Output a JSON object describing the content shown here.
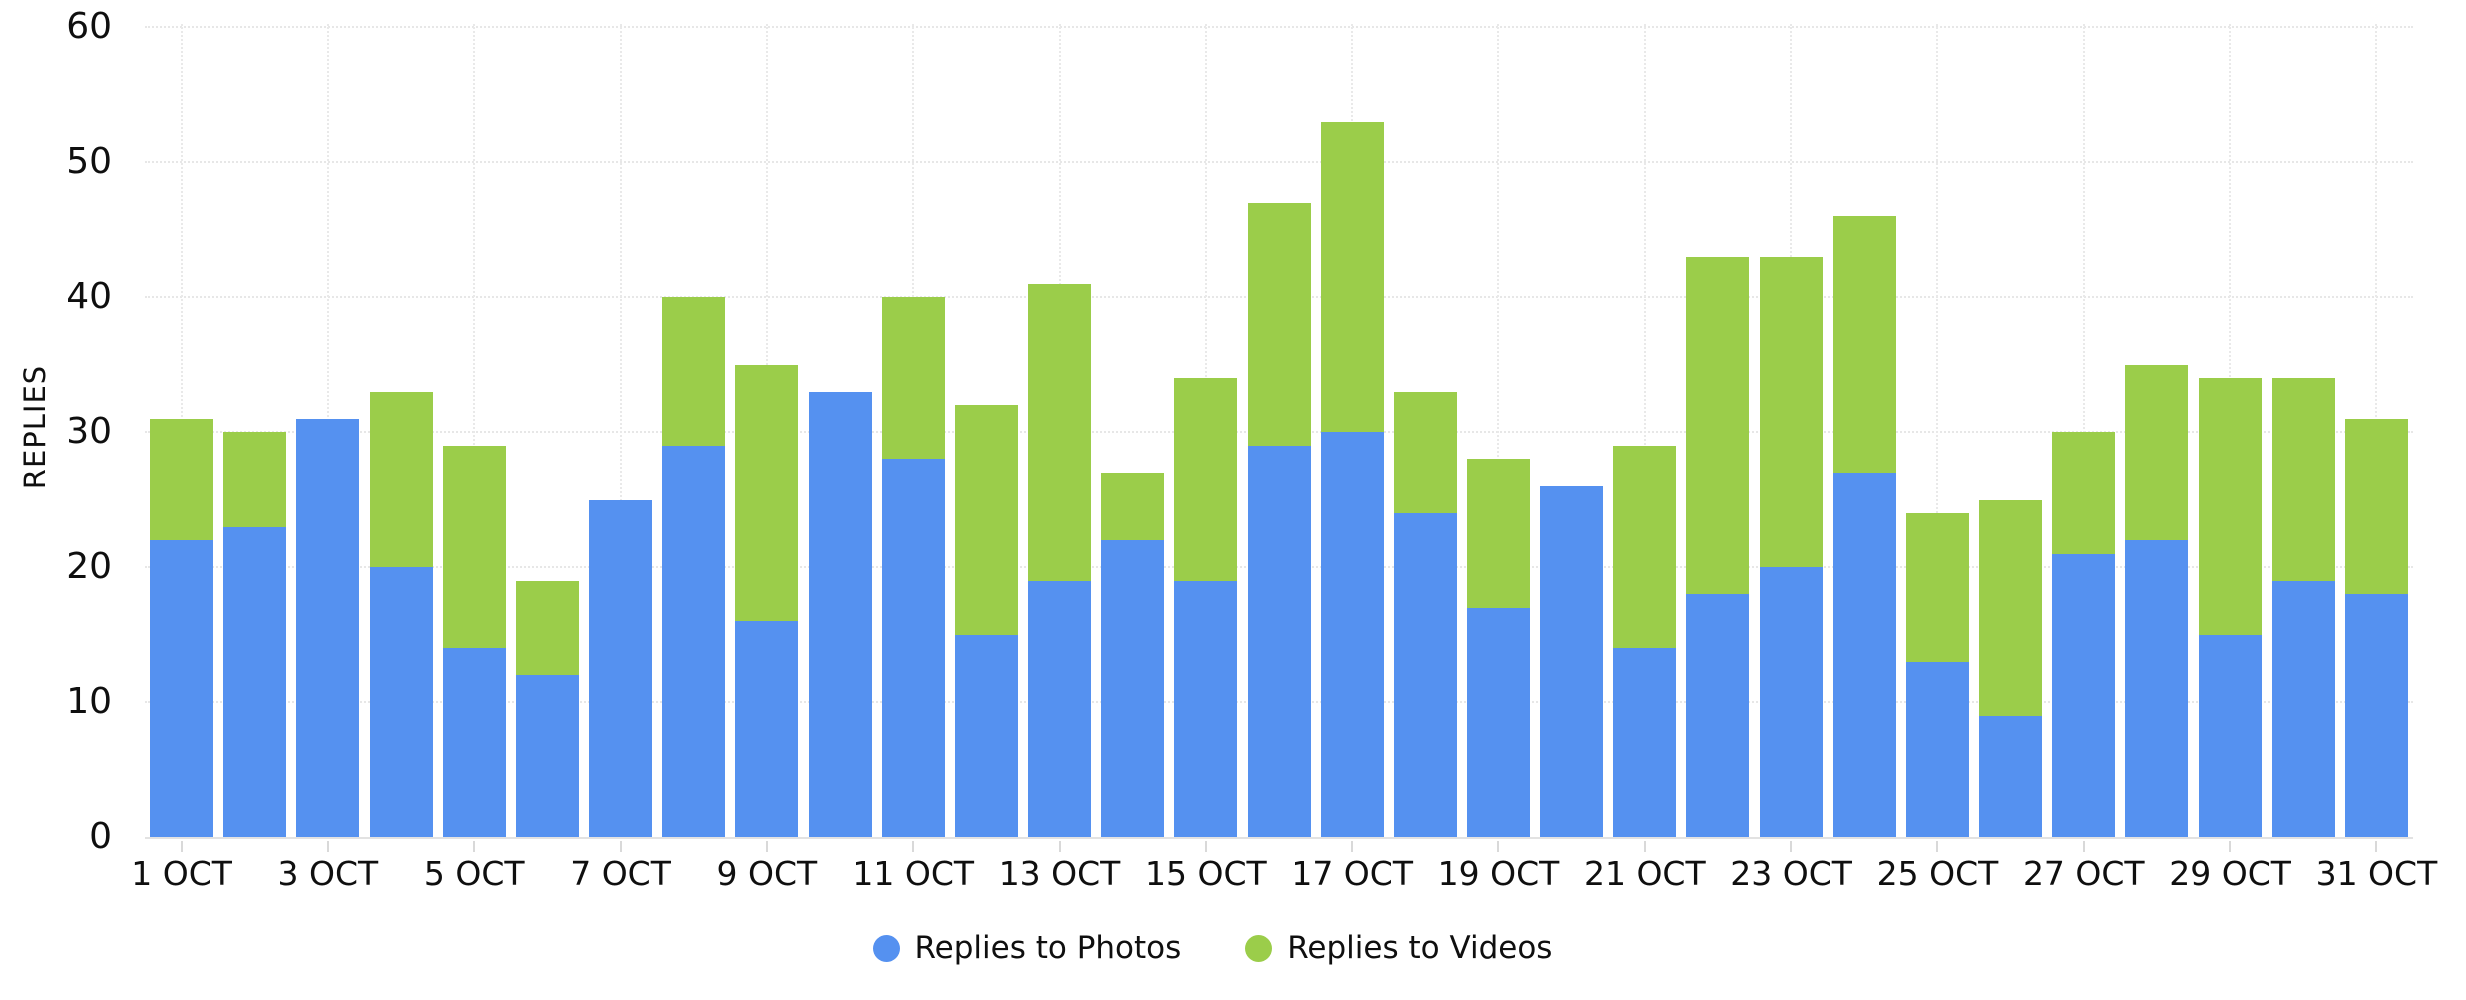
{
  "chart": {
    "y_axis_title": "REPLIES",
    "y_ticks": [
      0,
      10,
      20,
      30,
      40,
      50,
      60
    ],
    "x_tick_labels": [
      "1 OCT",
      "3 OCT",
      "5 OCT",
      "7 OCT",
      "9 OCT",
      "11 OCT",
      "13 OCT",
      "15 OCT",
      "17 OCT",
      "19 OCT",
      "21 OCT",
      "23 OCT",
      "25 OCT",
      "27 OCT",
      "29 OCT",
      "31 OCT"
    ],
    "colors": {
      "photos_blue": "#5591F0",
      "videos_green": "#9BCD4A",
      "gridline": "#e7e7e7",
      "axis_line": "#e2e2e2",
      "text": "#0f0f0f"
    }
  },
  "chart_data": {
    "type": "bar",
    "stacked": true,
    "title": "",
    "xlabel": "",
    "ylabel": "REPLIES",
    "ylim": [
      0,
      60
    ],
    "y_tick_step": 10,
    "x_tick_every": 2,
    "grid": true,
    "legend_position": "bottom",
    "categories": [
      "1 OCT",
      "2 OCT",
      "3 OCT",
      "4 OCT",
      "5 OCT",
      "6 OCT",
      "7 OCT",
      "8 OCT",
      "9 OCT",
      "10 OCT",
      "11 OCT",
      "12 OCT",
      "13 OCT",
      "14 OCT",
      "15 OCT",
      "16 OCT",
      "17 OCT",
      "18 OCT",
      "19 OCT",
      "20 OCT",
      "21 OCT",
      "22 OCT",
      "23 OCT",
      "24 OCT",
      "25 OCT",
      "26 OCT",
      "27 OCT",
      "28 OCT",
      "29 OCT",
      "30 OCT",
      "31 OCT"
    ],
    "series": [
      {
        "name": "Replies to Photos",
        "color": "#5591F0",
        "values": [
          22,
          23,
          31,
          20,
          14,
          12,
          25,
          29,
          16,
          33,
          28,
          15,
          19,
          22,
          19,
          29,
          30,
          24,
          17,
          26,
          14,
          18,
          20,
          27,
          13,
          9,
          21,
          22,
          15,
          19,
          18
        ]
      },
      {
        "name": "Replies to Videos",
        "color": "#9BCD4A",
        "values": [
          9,
          7,
          0,
          13,
          15,
          7,
          0,
          11,
          19,
          0,
          12,
          17,
          22,
          5,
          15,
          18,
          23,
          9,
          11,
          0,
          15,
          25,
          23,
          19,
          11,
          16,
          9,
          13,
          19,
          15,
          13
        ]
      }
    ],
    "stack_totals": [
      31,
      30,
      31,
      33,
      29,
      19,
      25,
      40,
      35,
      33,
      40,
      32,
      41,
      27,
      34,
      47,
      53,
      33,
      28,
      26,
      29,
      43,
      43,
      46,
      24,
      25,
      30,
      35,
      34,
      34,
      31
    ]
  }
}
